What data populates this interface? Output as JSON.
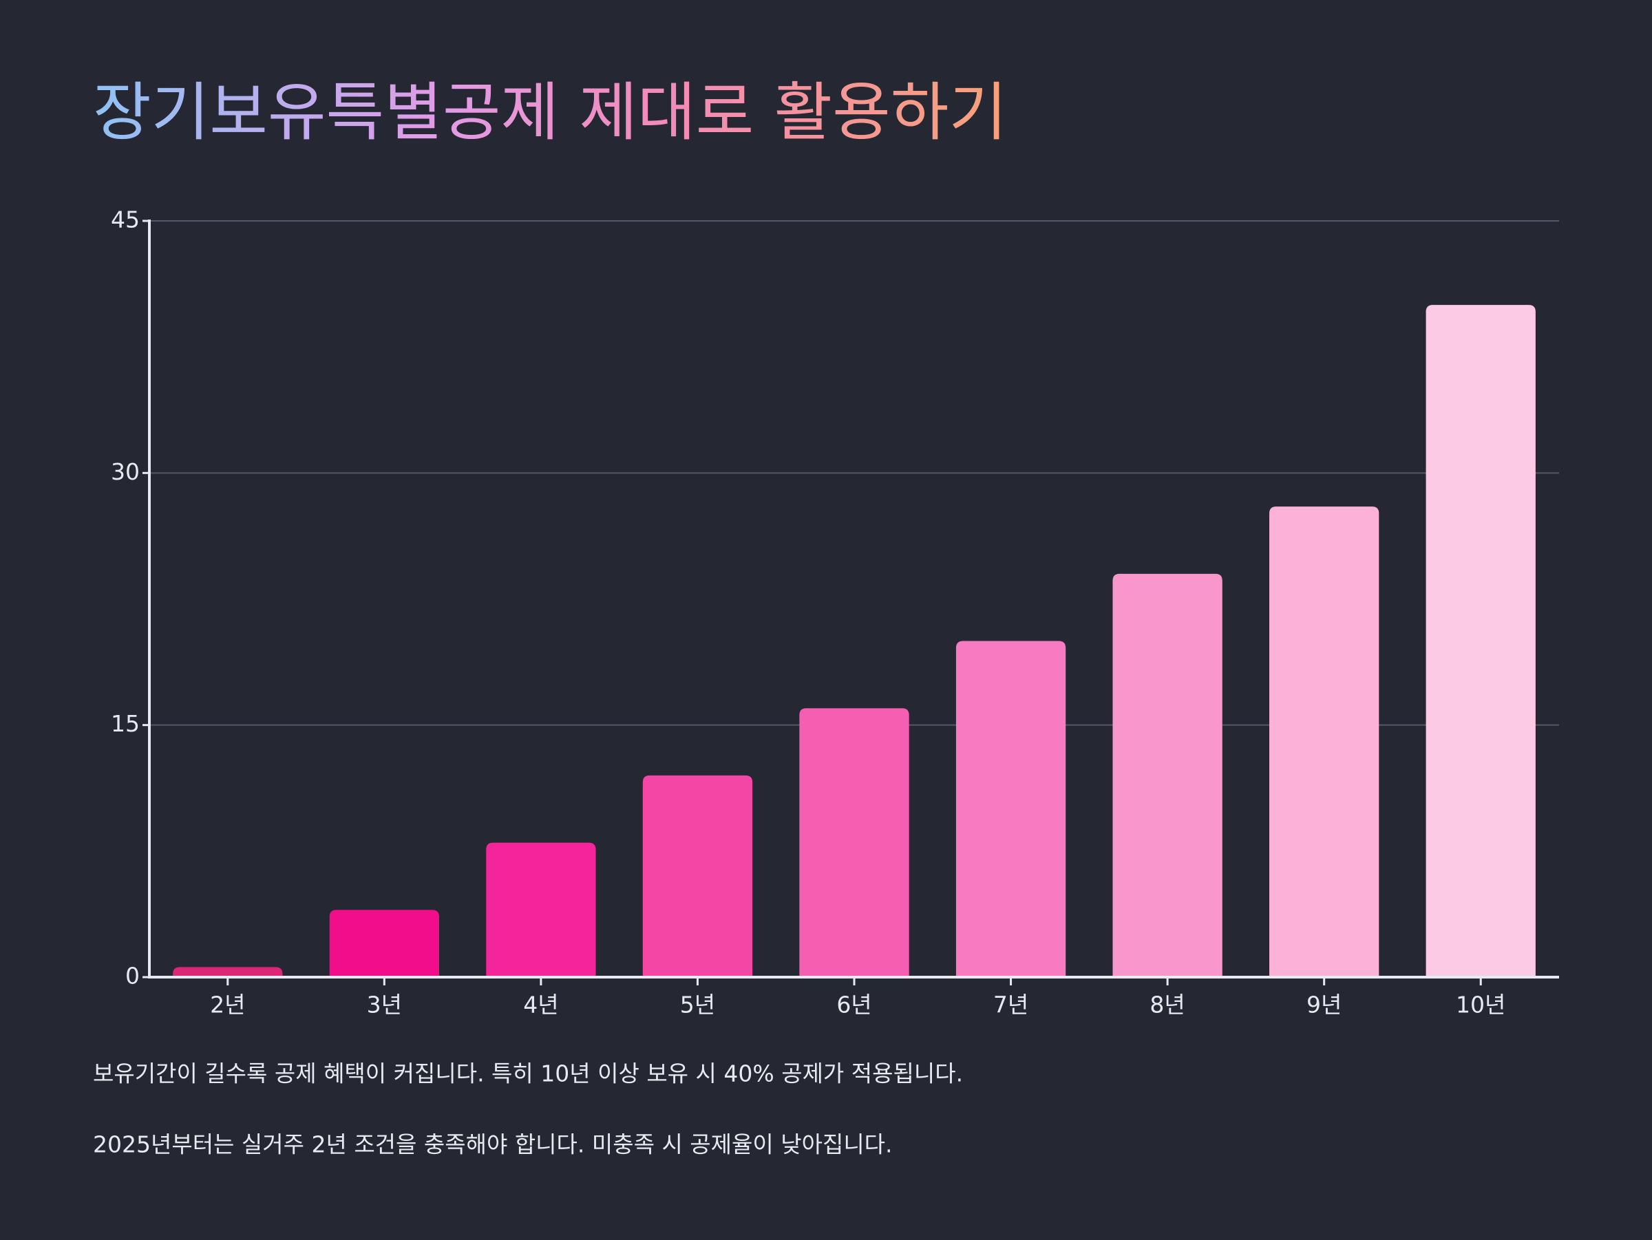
{
  "chart_data": {
    "type": "bar",
    "title": "장기보유특별공제 제대로 활용하기",
    "categories": [
      "2년",
      "3년",
      "4년",
      "5년",
      "6년",
      "7년",
      "8년",
      "9년",
      "10년"
    ],
    "values": [
      0.6,
      4,
      8,
      12,
      16,
      20,
      24,
      28,
      40
    ],
    "colors": [
      "#db2777",
      "#f20d8a",
      "#f4259a",
      "#f446a5",
      "#f65fb1",
      "#f87ac0",
      "#f997cc",
      "#fbb1d8",
      "#fccae4"
    ],
    "ylim": [
      0,
      45
    ],
    "yticks": [
      0,
      15,
      30,
      45
    ],
    "grid": true,
    "notes": [
      "보유기간이 길수록 공제 혜택이 커집니다. 특히 10년 이상 보유 시 40% 공제가 적용됩니다.",
      "2025년부터는 실거주 2년 조건을 충족해야 합니다. 미충족 시 공제율이 낮아집니다."
    ]
  }
}
